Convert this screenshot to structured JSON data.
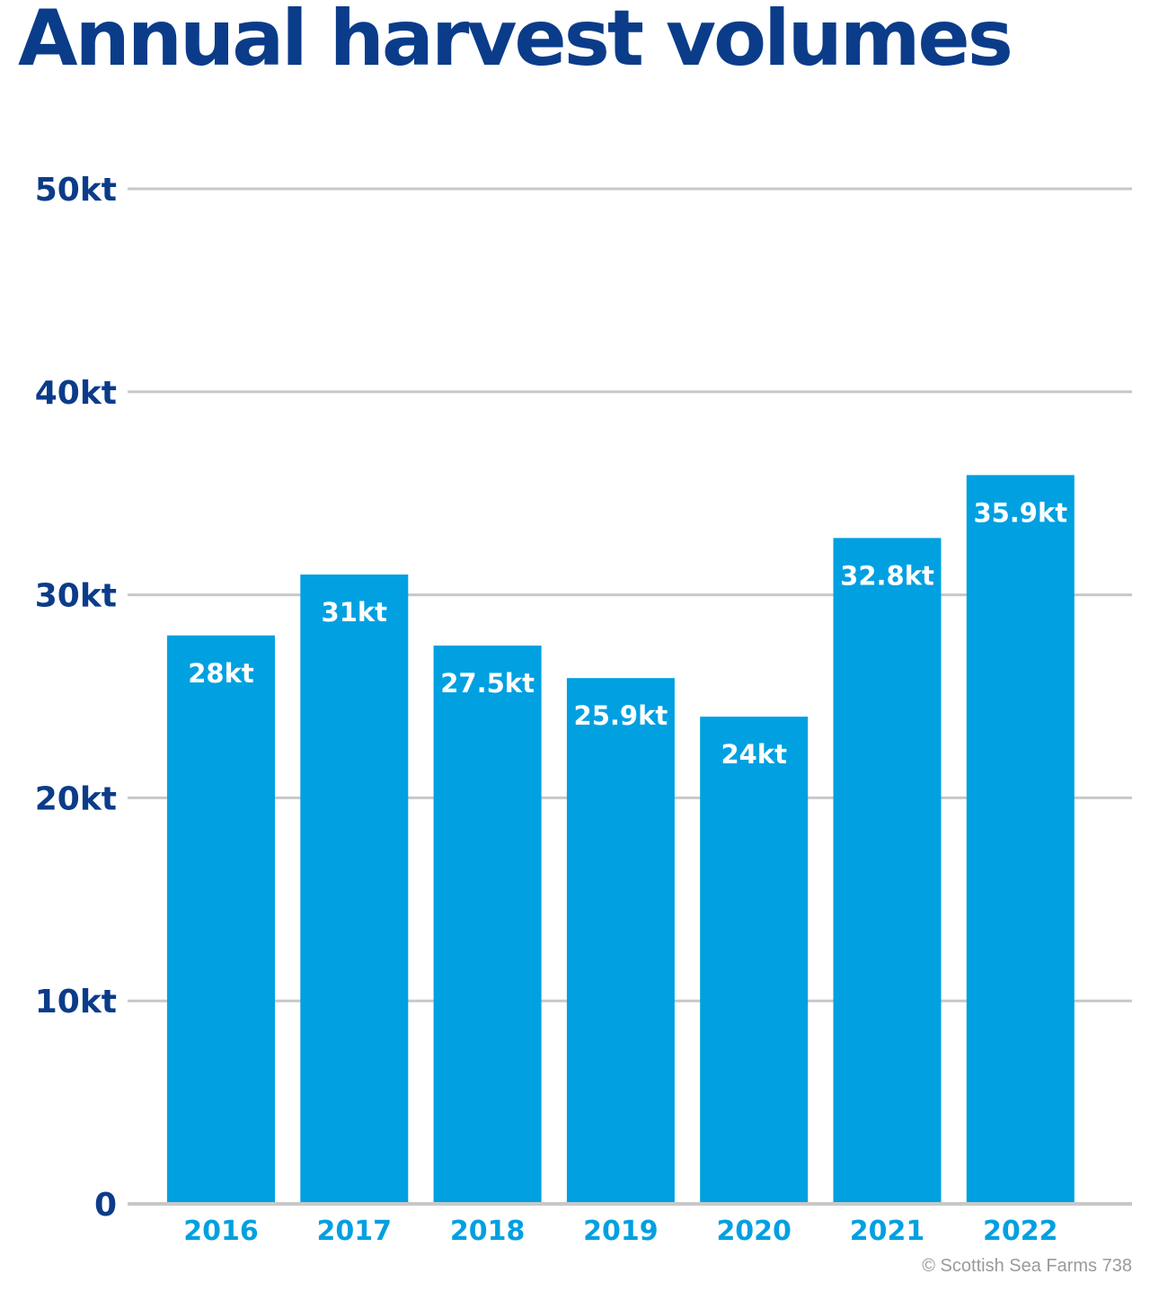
{
  "chart_data": {
    "type": "bar",
    "title": "Annual harvest volumes",
    "categories": [
      "2016",
      "2017",
      "2018",
      "2019",
      "2020",
      "2021",
      "2022"
    ],
    "values": [
      28,
      31,
      27.5,
      25.9,
      24,
      32.8,
      35.9
    ],
    "value_labels": [
      "28kt",
      "31kt",
      "27.5kt",
      "25.9kt",
      "24kt",
      "32.8kt",
      "35.9kt"
    ],
    "y_ticks": [
      0,
      10,
      20,
      30,
      40,
      50
    ],
    "y_tick_labels": [
      "0",
      "10kt",
      "20kt",
      "30kt",
      "40kt",
      "50kt"
    ],
    "ylim": [
      0,
      50
    ],
    "grid": true,
    "xlabel": "",
    "ylabel": ""
  },
  "copyright": "© Scottish Sea Farms 738",
  "colors": {
    "bar": "#00a0e1",
    "title": "#0b3c89",
    "y_tick_label": "#0b3c89",
    "x_tick_label": "#00a0e1",
    "value_label": "#ffffff",
    "grid": "#c8c8c8",
    "copyright": "#9a9a9a"
  }
}
